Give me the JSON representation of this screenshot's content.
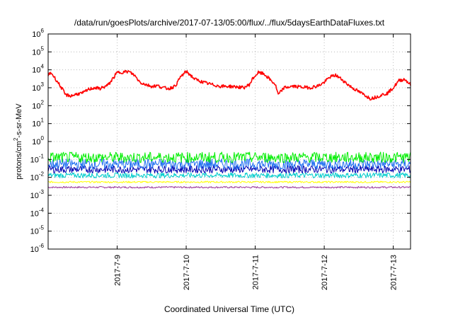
{
  "chart_data": {
    "type": "line",
    "title": "/data/run/goesPlots/archive/2017-07-13/05:00/flux/../flux/5daysEarthDataFluxes.txt",
    "xlabel": "Coordinated Universal Time (UTC)",
    "ylabel_parts": [
      "protons/cm",
      "2",
      "-s-sr-MeV"
    ],
    "y_scale": "log",
    "ylim": [
      1e-06,
      1000000.0
    ],
    "y_ticks": [
      {
        "base": "10",
        "exp": "-6"
      },
      {
        "base": "10",
        "exp": "-5"
      },
      {
        "base": "10",
        "exp": "-4"
      },
      {
        "base": "10",
        "exp": "-3"
      },
      {
        "base": "10",
        "exp": "-2"
      },
      {
        "base": "10",
        "exp": "-1"
      },
      {
        "base": "10",
        "exp": "0"
      },
      {
        "base": "10",
        "exp": "1"
      },
      {
        "base": "10",
        "exp": "2"
      },
      {
        "base": "10",
        "exp": "3"
      },
      {
        "base": "10",
        "exp": "4"
      },
      {
        "base": "10",
        "exp": "5"
      },
      {
        "base": "10",
        "exp": "6"
      }
    ],
    "x_range": [
      "2017-07-08 00:00",
      "2017-07-13 06:00"
    ],
    "x_ticks": [
      "2017-7-9",
      "2017-7-10",
      "2017-7-11",
      "2017-7-12",
      "2017-7-13"
    ],
    "grid": true,
    "legend": "none",
    "series": [
      {
        "color": "#ff0000",
        "x": [
          "2017-07-08 00:00",
          "2017-07-08 01:00",
          "2017-07-08 03:00",
          "2017-07-08 05:00",
          "2017-07-08 06:00",
          "2017-07-08 08:00",
          "2017-07-08 10:00",
          "2017-07-08 12:00",
          "2017-07-08 14:00",
          "2017-07-08 16:00",
          "2017-07-08 18:00",
          "2017-07-08 20:00",
          "2017-07-08 21:00",
          "2017-07-08 22:00",
          "2017-07-09 00:00",
          "2017-07-09 02:00",
          "2017-07-09 04:00",
          "2017-07-09 06:00",
          "2017-07-09 08:00",
          "2017-07-09 10:00",
          "2017-07-09 12:00",
          "2017-07-09 14:00",
          "2017-07-09 16:00",
          "2017-07-09 18:00",
          "2017-07-09 20:00",
          "2017-07-09 21:00",
          "2017-07-09 22:00",
          "2017-07-10 00:00",
          "2017-07-10 01:00",
          "2017-07-10 03:00",
          "2017-07-10 06:00",
          "2017-07-10 09:00",
          "2017-07-10 12:00",
          "2017-07-10 15:00",
          "2017-07-10 18:00",
          "2017-07-10 20:00",
          "2017-07-10 22:00",
          "2017-07-10 23:00",
          "2017-07-11 01:00",
          "2017-07-11 03:00",
          "2017-07-11 05:00",
          "2017-07-11 07:00",
          "2017-07-11 08:00",
          "2017-07-11 10:00",
          "2017-07-11 13:00",
          "2017-07-11 16:00",
          "2017-07-11 19:00",
          "2017-07-11 22:00",
          "2017-07-12 00:00",
          "2017-07-12 02:00",
          "2017-07-12 04:00",
          "2017-07-12 06:00",
          "2017-07-12 09:00",
          "2017-07-12 12:00",
          "2017-07-12 14:00",
          "2017-07-12 16:00",
          "2017-07-12 18:00",
          "2017-07-12 20:00",
          "2017-07-12 22:00",
          "2017-07-13 00:00",
          "2017-07-13 02:00",
          "2017-07-13 04:00",
          "2017-07-13 06:00"
        ],
        "y": [
          5000,
          7000,
          2500,
          800,
          400,
          350,
          450,
          500,
          800,
          1000,
          900,
          1200,
          1500,
          2500,
          7000,
          7500,
          8000,
          5000,
          2000,
          1500,
          1200,
          1300,
          1000,
          900,
          1200,
          2000,
          4000,
          8000,
          6000,
          3000,
          2000,
          1500,
          1200,
          1200,
          1100,
          1000,
          1500,
          3000,
          7000,
          6000,
          3000,
          1500,
          400,
          1000,
          1200,
          1100,
          1000,
          1300,
          2000,
          4000,
          5000,
          3000,
          1200,
          600,
          400,
          250,
          300,
          400,
          500,
          1000,
          2500,
          3000,
          1500
        ]
      },
      {
        "color": "#00ee00",
        "base": 0.13,
        "spread": 0.5
      },
      {
        "color": "#1e6ef0",
        "base": 0.055,
        "spread": 0.5
      },
      {
        "color": "#0000b0",
        "base": 0.028,
        "spread": 0.35
      },
      {
        "color": "#00cccc",
        "base": 0.013,
        "spread": 0.25
      },
      {
        "color": "#ffff00",
        "base": 0.0055,
        "spread": 0.08
      },
      {
        "color": "#993399",
        "base": 0.0028,
        "spread": 0.08
      }
    ]
  }
}
